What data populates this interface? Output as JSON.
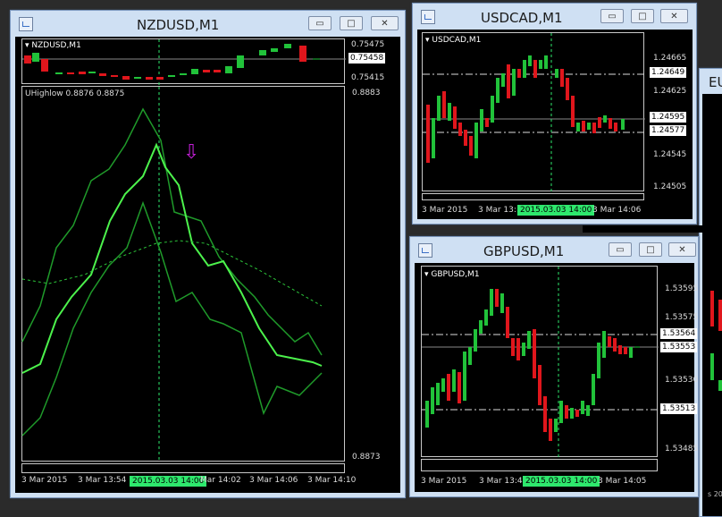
{
  "windows": {
    "nzdusd": {
      "title": "NZDUSD,M1",
      "chart_label": "NZDUSD,M1",
      "prices": [
        "0.75475",
        "0.75458",
        "0.75415"
      ],
      "indicator_label": "UHighlow 0.8876 0.8875",
      "indicator_scale": [
        "0.8883",
        "0.8873"
      ],
      "time_labels": [
        "3 Mar 2015",
        "3 Mar 13:54",
        "2015.03.03 14:00",
        "Mar 14:02",
        "3 Mar 14:06",
        "3 Mar 14:10"
      ]
    },
    "usdcad": {
      "title": "USDCAD,M1",
      "chart_label": "USDCAD,M1",
      "prices": [
        "1.24665",
        "1.24649",
        "1.24625",
        "1.24595",
        "1.24577",
        "1.24545",
        "1.24505"
      ],
      "time_labels": [
        "3 Mar 2015",
        "3 Mar 13:",
        "2015.03.03 14:00",
        "3 Mar 14:06"
      ]
    },
    "gbpusd": {
      "title": "GBPUSD,M1",
      "chart_label": "GBPUSD,M1",
      "prices": [
        "1.53595",
        "1.53575",
        "1.53564",
        "1.53553",
        "1.53530",
        "1.53513",
        "1.53485"
      ],
      "time_labels": [
        "3 Mar 2015",
        "3 Mar 13:49",
        "2015.03.03 14:00",
        "3 Mar 14:05"
      ]
    },
    "background": {
      "partial_title": "EU",
      "partial_footer": "s 20"
    }
  },
  "buttons": {
    "minimize": "▭",
    "maximize": "□",
    "close": "✕"
  },
  "colors": {
    "bull": "#21c23a",
    "bear": "#e0161c",
    "line_bright": "#4cf24c",
    "line_dark": "#1f9a2a",
    "crosshair": "#2ee86d",
    "arrow": "#c21fd6"
  }
}
